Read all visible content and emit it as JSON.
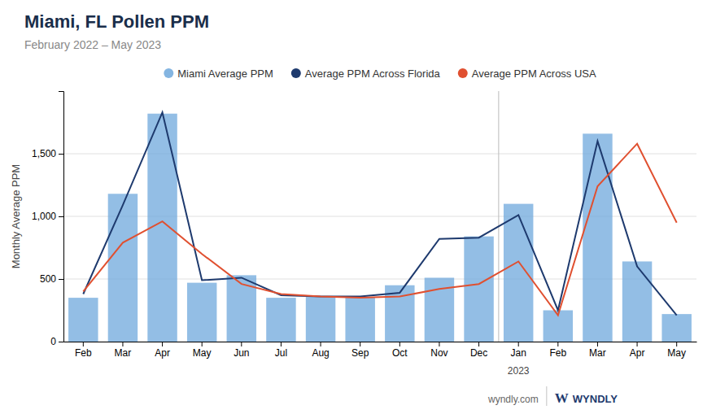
{
  "chart_data": {
    "type": "bar",
    "title": "Miami, FL Pollen PPM",
    "subtitle": "February 2022 – May 2023",
    "ylabel": "Monthly Average PPM",
    "categories": [
      "Feb",
      "Mar",
      "Apr",
      "May",
      "Jun",
      "Jul",
      "Aug",
      "Sep",
      "Oct",
      "Nov",
      "Dec",
      "Jan",
      "Feb",
      "Mar",
      "Apr",
      "May"
    ],
    "series": [
      {
        "name": "Miami Average PPM",
        "type": "bar",
        "color": "#6fa8dc",
        "values": [
          350,
          1180,
          1820,
          470,
          530,
          350,
          360,
          355,
          450,
          510,
          840,
          1100,
          250,
          1660,
          640,
          220
        ]
      },
      {
        "name": "Average PPM Across Florida",
        "type": "line",
        "color": "#1e3a6e",
        "values": [
          380,
          1090,
          1830,
          490,
          510,
          370,
          360,
          360,
          390,
          820,
          830,
          1010,
          250,
          1600,
          600,
          210
        ]
      },
      {
        "name": "Average PPM Across USA",
        "type": "line",
        "color": "#e05030",
        "values": [
          400,
          790,
          960,
          700,
          460,
          380,
          360,
          350,
          360,
          420,
          460,
          640,
          210,
          1240,
          1580,
          950
        ]
      }
    ],
    "ylim": [
      0,
      2000
    ],
    "yticks": [
      0,
      500,
      {
        "value": 1000,
        "label": "1,000"
      },
      {
        "value": 1500,
        "label": "1,500"
      }
    ],
    "grid": true,
    "legend": "top",
    "annotations": [
      {
        "text": "2023",
        "x": 11
      },
      {
        "text": "wyndly.com"
      },
      {
        "text": "W"
      },
      {
        "text": "WYNDLY"
      }
    ]
  }
}
